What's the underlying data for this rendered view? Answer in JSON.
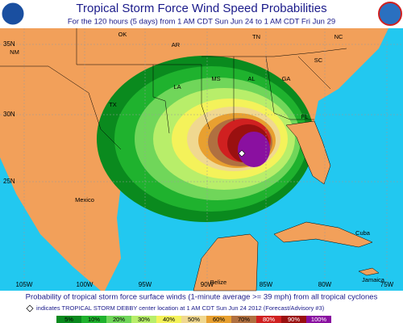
{
  "header": {
    "title": "Tropical Storm Force Wind Speed Probabilities",
    "subtitle": "For the 120 hours (5 days) from 1 AM CDT Sun Jun 24 to 1 AM CDT Fri Jun 29"
  },
  "latitude_labels": [
    "35N",
    "30N",
    "25N"
  ],
  "longitude_labels": [
    "105W",
    "100W",
    "95W",
    "90W",
    "85W",
    "80W",
    "75W"
  ],
  "place_labels": [
    "NM",
    "OK",
    "AR",
    "TN",
    "NC",
    "SC",
    "GA",
    "AL",
    "MS",
    "LA",
    "TX",
    "FL",
    "Mexico",
    "Cuba",
    "Jamaica",
    "Belize"
  ],
  "footer": {
    "description": "Probability of tropical storm force surface winds (1-minute average >= 39 mph) from all tropical cyclones",
    "marker_note": "indicates TROPICAL STORM DEBBY center location at 1 AM CDT Sun Jun 24 2012 (Forecast/Advisory #3)"
  },
  "legend": [
    {
      "label": "5%",
      "color": "#0a8a1e"
    },
    {
      "label": "10%",
      "color": "#1fb22e"
    },
    {
      "label": "20%",
      "color": "#70d65a"
    },
    {
      "label": "30%",
      "color": "#b8ee6a"
    },
    {
      "label": "40%",
      "color": "#f4f25a"
    },
    {
      "label": "50%",
      "color": "#f0d890"
    },
    {
      "label": "60%",
      "color": "#e8a030"
    },
    {
      "label": "70%",
      "color": "#b07040"
    },
    {
      "label": "80%",
      "color": "#d02020"
    },
    {
      "label": "90%",
      "color": "#9a1010"
    },
    {
      "label": "100%",
      "color": "#8a10a0"
    }
  ]
}
